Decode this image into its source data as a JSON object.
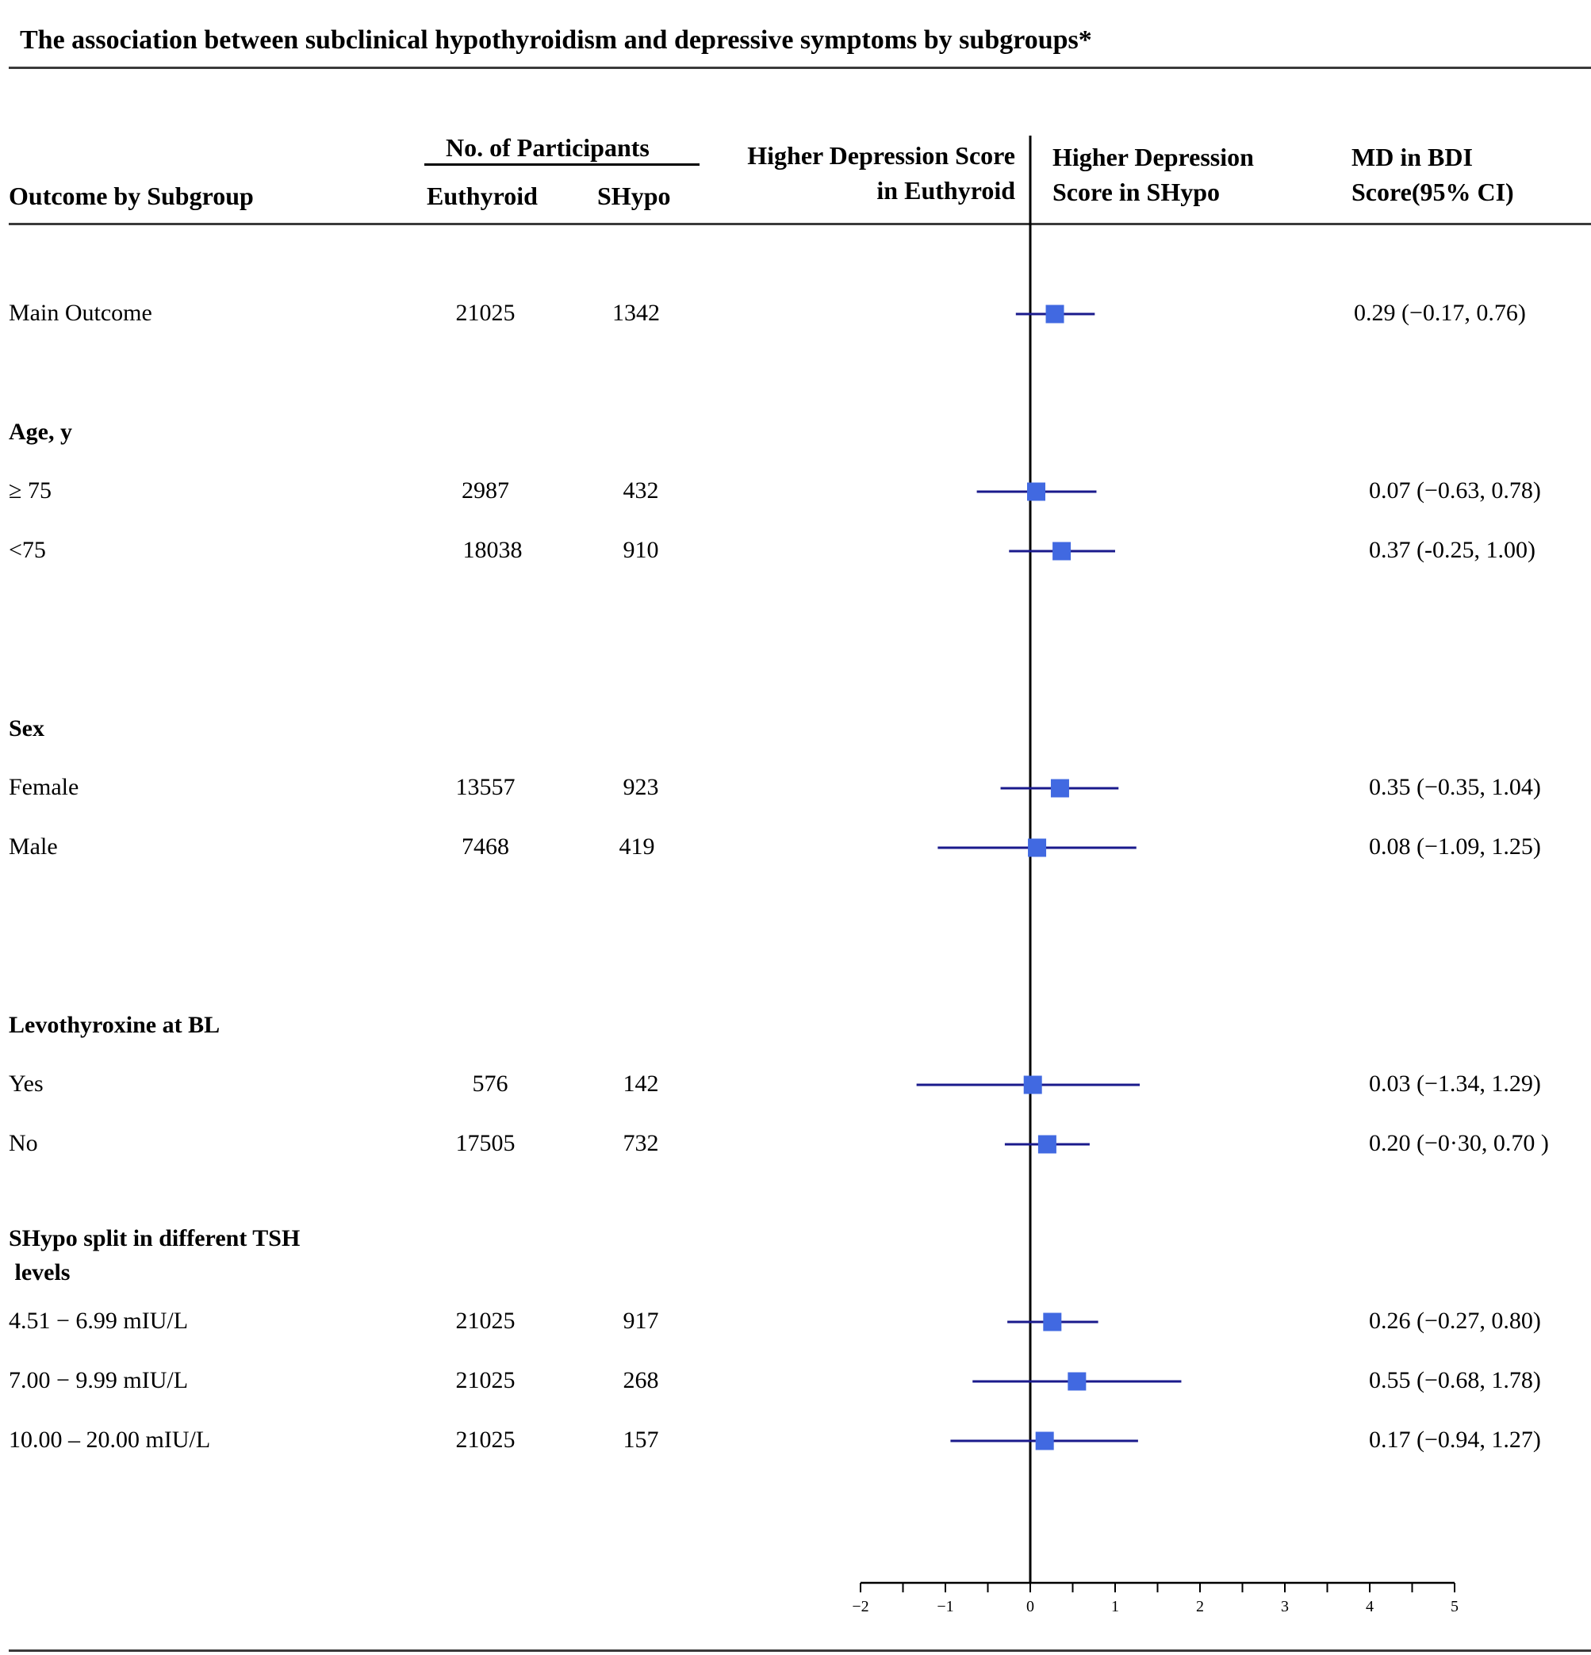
{
  "title": "The association between subclinical hypothyroidism and depressive symptoms by subgroups*",
  "headers": {
    "participants": "No. of Participants",
    "subgroup": "Outcome by Subgroup",
    "euthyroid": "Euthyroid",
    "shypo": "SHypo",
    "left_direction_1": "Higher Depression Score",
    "left_direction_2": "in Euthyroid",
    "right_direction_1": "Higher Depression",
    "right_direction_2": "Score in  SHypo",
    "md_1": "MD in BDI",
    "md_2": "Score(95% CI)"
  },
  "groups": {
    "age": "Age, y",
    "sex": "Sex",
    "levo": "Levothyroxine at BL",
    "tsh_1": "SHypo split in different TSH",
    "tsh_2": " levels"
  },
  "rows": [
    {
      "label": "Main Outcome",
      "euthyroid": "21025",
      "shypo": "1342",
      "md": "0.29 (−0.17, 0.76)"
    },
    {
      "label": "≥ 75",
      "euthyroid": "2987",
      "shypo": "432",
      "md": "0.07 (−0.63, 0.78)"
    },
    {
      "label": "<75",
      "euthyroid": "18038",
      "shypo": "910",
      "md": "0.37 (-0.25, 1.00)"
    },
    {
      "label": "Female",
      "euthyroid": "13557",
      "shypo": "923",
      "md": "0.35 (−0.35, 1.04)"
    },
    {
      "label": "Male",
      "euthyroid": "7468",
      "shypo": "419",
      "md": "0.08 (−1.09, 1.25)"
    },
    {
      "label": "Yes",
      "euthyroid": "576",
      "shypo": "142",
      "md": "0.03 (−1.34, 1.29)"
    },
    {
      "label": "No",
      "euthyroid": "17505",
      "shypo": "732",
      "md": "0.20 (−0·30, 0.70 )"
    },
    {
      "label": "4.51 − 6.99 mIU/L",
      "euthyroid": "21025",
      "shypo": "917",
      "md": "0.26 (−0.27, 0.80)"
    },
    {
      "label": "7.00 − 9.99 mIU/L",
      "euthyroid": "21025",
      "shypo": "268",
      "md": "0.55 (−0.68, 1.78)"
    },
    {
      "label": "10.00 – 20.00 mIU/L",
      "euthyroid": "21025",
      "shypo": "157",
      "md": "0.17 (−0.94, 1.27)"
    }
  ],
  "chart_data": {
    "type": "forest",
    "xlim": [
      -2,
      5
    ],
    "ticks": [
      "−2",
      "−1",
      "0",
      "1",
      "2",
      "3",
      "4",
      "5"
    ],
    "reference_line": 0,
    "points": [
      {
        "estimate": 0.29,
        "lower": -0.17,
        "upper": 0.76
      },
      {
        "estimate": 0.07,
        "lower": -0.63,
        "upper": 0.78
      },
      {
        "estimate": 0.37,
        "lower": -0.25,
        "upper": 1.0
      },
      {
        "estimate": 0.35,
        "lower": -0.35,
        "upper": 1.04
      },
      {
        "estimate": 0.08,
        "lower": -1.09,
        "upper": 1.25
      },
      {
        "estimate": 0.03,
        "lower": -1.34,
        "upper": 1.29
      },
      {
        "estimate": 0.2,
        "lower": -0.3,
        "upper": 0.7
      },
      {
        "estimate": 0.26,
        "lower": -0.27,
        "upper": 0.8
      },
      {
        "estimate": 0.55,
        "lower": -0.68,
        "upper": 1.78
      },
      {
        "estimate": 0.17,
        "lower": -0.94,
        "upper": 1.27
      }
    ],
    "marker_color": "#4169e1",
    "ci_color": "#1a1a8c"
  }
}
